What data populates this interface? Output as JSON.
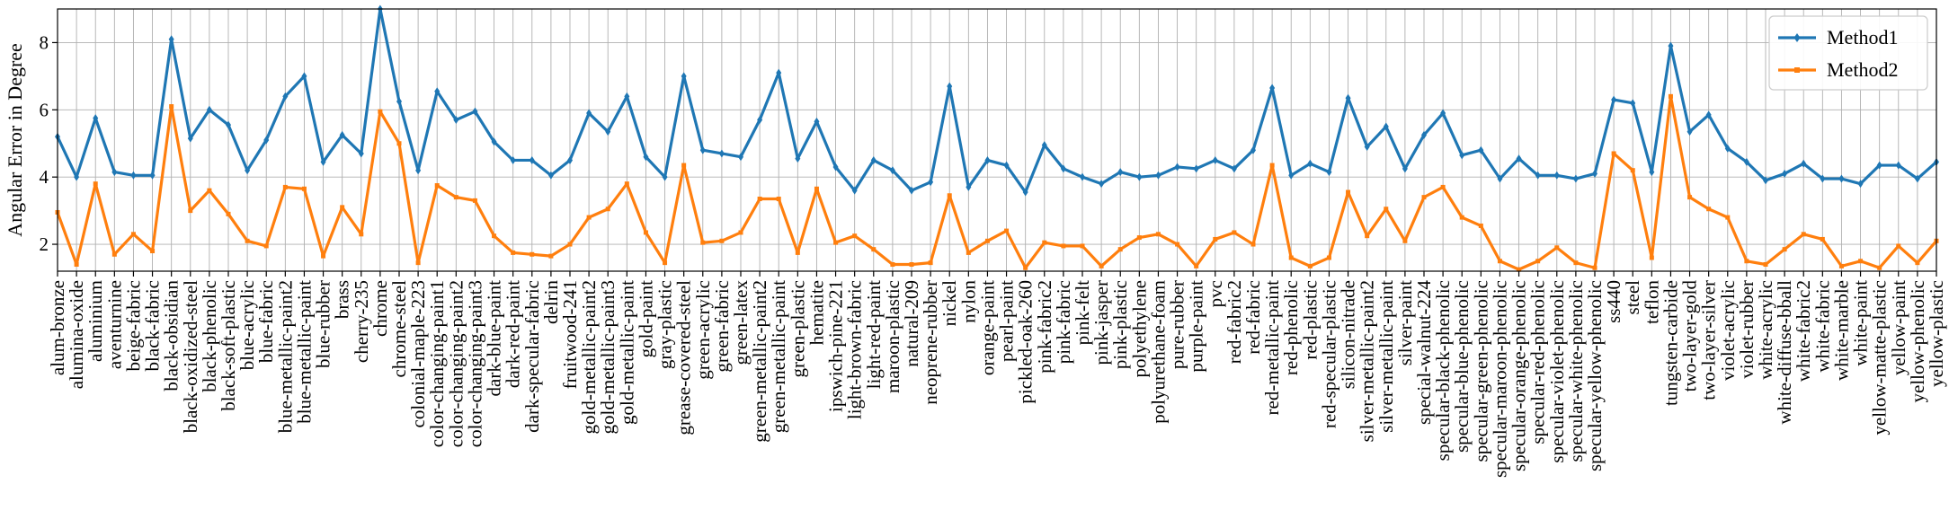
{
  "chart_data": {
    "type": "line",
    "ylabel": "Angular Error in Degree",
    "ylim": [
      1.2,
      9.0
    ],
    "yticks": [
      2,
      4,
      6,
      8
    ],
    "grid": true,
    "legend_position": "top-right",
    "categories": [
      "alum-bronze",
      "alumina-oxide",
      "aluminium",
      "aventurnine",
      "beige-fabric",
      "black-fabric",
      "black-obsidian",
      "black-oxidized-steel",
      "black-phenolic",
      "black-soft-plastic",
      "blue-acrylic",
      "blue-fabric",
      "blue-metallic-paint2",
      "blue-metallic-paint",
      "blue-rubber",
      "brass",
      "cherry-235",
      "chrome",
      "chrome-steel",
      "colonial-maple-223",
      "color-changing-paint1",
      "color-changing-paint2",
      "color-changing-paint3",
      "dark-blue-paint",
      "dark-red-paint",
      "dark-specular-fabric",
      "delrin",
      "fruitwood-241",
      "gold-metallic-paint2",
      "gold-metallic-paint3",
      "gold-metallic-paint",
      "gold-paint",
      "gray-plastic",
      "grease-covered-steel",
      "green-acrylic",
      "green-fabric",
      "green-latex",
      "green-metallic-paint2",
      "green-metallic-paint",
      "green-plastic",
      "hematite",
      "ipswich-pine-221",
      "light-brown-fabric",
      "light-red-paint",
      "maroon-plastic",
      "natural-209",
      "neoprene-rubber",
      "nickel",
      "nylon",
      "orange-paint",
      "pearl-paint",
      "pickled-oak-260",
      "pink-fabric2",
      "pink-fabric",
      "pink-felt",
      "pink-jasper",
      "pink-plastic",
      "polyethylene",
      "polyurethane-foam",
      "pure-rubber",
      "purple-paint",
      "pvc",
      "red-fabric2",
      "red-fabric",
      "red-metallic-paint",
      "red-phenolic",
      "red-plastic",
      "red-specular-plastic",
      "silicon-nitrade",
      "silver-metallic-paint2",
      "silver-metallic-paint",
      "silver-paint",
      "special-walnut-224",
      "specular-black-phenolic",
      "specular-blue-phenolic",
      "specular-green-phenolic",
      "specular-maroon-phenolic",
      "specular-orange-phenolic",
      "specular-red-phenolic",
      "specular-violet-phenolic",
      "specular-white-phenolic",
      "specular-yellow-phenolic",
      "ss440",
      "steel",
      "teflon",
      "tungsten-carbide",
      "two-layer-gold",
      "two-layer-silver",
      "violet-acrylic",
      "violet-rubber",
      "white-acrylic",
      "white-diffuse-bball",
      "white-fabric2",
      "white-fabric",
      "white-marble",
      "white-paint",
      "yellow-matte-plastic",
      "yellow-paint",
      "yellow-phenolic",
      "yellow-plastic"
    ],
    "series": [
      {
        "name": "Method1",
        "color": "#1f77b4",
        "marker": "diamond",
        "values": [
          5.2,
          4.0,
          5.75,
          4.15,
          4.05,
          4.05,
          8.1,
          5.15,
          6.0,
          5.55,
          4.2,
          5.1,
          6.4,
          7.0,
          4.45,
          5.25,
          4.7,
          9.0,
          6.25,
          4.2,
          6.55,
          5.7,
          5.95,
          5.05,
          4.5,
          4.5,
          4.05,
          4.5,
          5.9,
          5.35,
          6.4,
          4.6,
          4.0,
          7.0,
          4.8,
          4.7,
          4.6,
          5.7,
          7.1,
          4.55,
          5.65,
          4.3,
          3.6,
          4.5,
          4.2,
          3.6,
          3.85,
          6.7,
          3.7,
          4.5,
          4.35,
          3.55,
          4.95,
          4.25,
          4.0,
          3.8,
          4.15,
          4.0,
          4.05,
          4.3,
          4.25,
          4.5,
          4.25,
          4.8,
          6.65,
          4.05,
          4.4,
          4.15,
          6.35,
          4.9,
          5.5,
          4.25,
          5.25,
          5.9,
          4.65,
          4.8,
          3.95,
          4.55,
          4.05,
          4.05,
          3.95,
          4.1,
          6.3,
          6.2,
          4.15,
          7.9,
          5.35,
          5.85,
          4.85,
          4.45,
          3.9,
          4.1,
          4.4,
          3.95,
          3.95,
          3.8,
          4.35,
          4.35,
          3.95,
          4.45
        ]
      },
      {
        "name": "Method2",
        "color": "#ff7f0e",
        "marker": "square",
        "values": [
          2.95,
          1.4,
          3.8,
          1.7,
          2.3,
          1.8,
          6.1,
          3.0,
          3.6,
          2.9,
          2.1,
          1.95,
          3.7,
          3.65,
          1.65,
          3.1,
          2.3,
          5.95,
          5.0,
          1.45,
          3.75,
          3.4,
          3.3,
          2.25,
          1.75,
          1.7,
          1.65,
          2.0,
          2.8,
          3.05,
          3.8,
          2.35,
          1.45,
          4.35,
          2.05,
          2.1,
          2.35,
          3.35,
          3.35,
          1.75,
          3.65,
          2.05,
          2.25,
          1.85,
          1.4,
          1.4,
          1.45,
          3.45,
          1.75,
          2.1,
          2.4,
          1.3,
          2.05,
          1.95,
          1.95,
          1.35,
          1.85,
          2.2,
          2.3,
          2.0,
          1.35,
          2.15,
          2.35,
          2.0,
          4.35,
          1.6,
          1.35,
          1.6,
          3.55,
          2.25,
          3.05,
          2.1,
          3.4,
          3.7,
          2.8,
          2.55,
          1.5,
          1.25,
          1.5,
          1.9,
          1.45,
          1.3,
          4.7,
          4.2,
          1.6,
          6.4,
          3.4,
          3.05,
          2.8,
          1.5,
          1.4,
          1.85,
          2.3,
          2.15,
          1.35,
          1.5,
          1.3,
          1.95,
          1.45,
          2.1
        ]
      }
    ]
  }
}
